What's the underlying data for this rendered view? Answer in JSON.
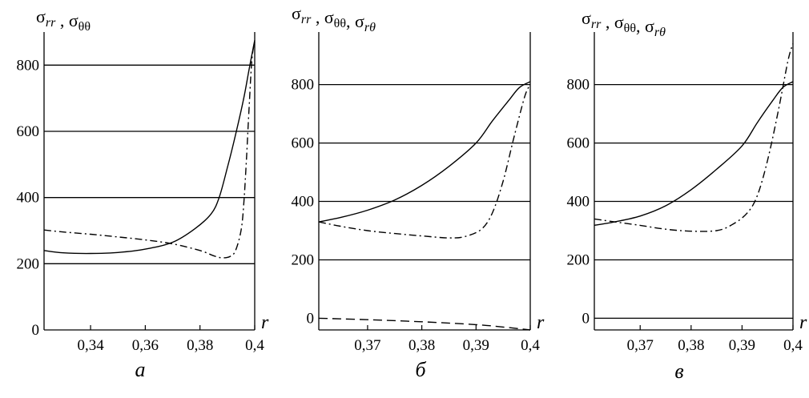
{
  "chart_data": [
    {
      "type": "line",
      "title": "",
      "ylabel": "σrr , σθθ",
      "xlabel": "r",
      "caption": "а",
      "xlim": [
        0.323,
        0.4
      ],
      "ylim": [
        0,
        900
      ],
      "gridlines_y": [
        200,
        400,
        600,
        800
      ],
      "xticks": [
        {
          "v": 0.34,
          "t": "0,34"
        },
        {
          "v": 0.36,
          "t": "0,36"
        },
        {
          "v": 0.38,
          "t": "0,38"
        },
        {
          "v": 0.4,
          "t": "0,4"
        }
      ],
      "yticks": [
        {
          "v": 0,
          "t": "0"
        },
        {
          "v": 200,
          "t": "200"
        },
        {
          "v": 400,
          "t": "400"
        },
        {
          "v": 600,
          "t": "600"
        },
        {
          "v": 800,
          "t": "800"
        }
      ],
      "series": [
        {
          "style": "solid",
          "x": [
            0.323,
            0.33,
            0.34,
            0.35,
            0.36,
            0.37,
            0.378,
            0.384,
            0.387,
            0.39,
            0.393,
            0.396,
            0.398,
            0.4
          ],
          "y": [
            240,
            233,
            231,
            234,
            244,
            265,
            305,
            350,
            400,
            490,
            590,
            700,
            790,
            875
          ]
        },
        {
          "style": "dashdot",
          "x": [
            0.323,
            0.33,
            0.34,
            0.35,
            0.36,
            0.37,
            0.38,
            0.385,
            0.388,
            0.391,
            0.393,
            0.395,
            0.396,
            0.397,
            0.398,
            0.399,
            0.4
          ],
          "y": [
            302,
            296,
            289,
            281,
            272,
            260,
            240,
            224,
            218,
            222,
            240,
            300,
            380,
            520,
            680,
            820,
            870
          ]
        }
      ]
    },
    {
      "type": "line",
      "title": "",
      "ylabel": "σrr , σθθ, σrθ",
      "xlabel": "r",
      "caption": "б",
      "xlim": [
        0.361,
        0.4
      ],
      "ylim": [
        -40,
        980
      ],
      "gridlines_y": [
        200,
        400,
        600,
        800
      ],
      "xticks": [
        {
          "v": 0.37,
          "t": "0,37"
        },
        {
          "v": 0.38,
          "t": "0,38"
        },
        {
          "v": 0.39,
          "t": "0,39"
        },
        {
          "v": 0.4,
          "t": "0,4"
        }
      ],
      "yticks": [
        {
          "v": 0,
          "t": "0"
        },
        {
          "v": 200,
          "t": "200"
        },
        {
          "v": 400,
          "t": "400"
        },
        {
          "v": 600,
          "t": "600"
        },
        {
          "v": 800,
          "t": "800"
        }
      ],
      "series": [
        {
          "style": "solid",
          "x": [
            0.361,
            0.365,
            0.37,
            0.375,
            0.38,
            0.385,
            0.39,
            0.393,
            0.396,
            0.398,
            0.4
          ],
          "y": [
            330,
            345,
            370,
            405,
            455,
            520,
            600,
            675,
            745,
            790,
            810
          ]
        },
        {
          "style": "dashdot",
          "x": [
            0.361,
            0.365,
            0.37,
            0.375,
            0.38,
            0.385,
            0.388,
            0.391,
            0.393,
            0.395,
            0.397,
            0.399,
            0.4
          ],
          "y": [
            330,
            315,
            300,
            290,
            282,
            275,
            280,
            305,
            360,
            470,
            620,
            760,
            800
          ]
        },
        {
          "style": "dashed",
          "x": [
            0.361,
            0.37,
            0.38,
            0.39,
            0.395,
            0.4
          ],
          "y": [
            0,
            -5,
            -12,
            -22,
            -30,
            -40
          ]
        }
      ]
    },
    {
      "type": "line",
      "title": "",
      "ylabel": "σrr , σθθ, σrθ",
      "xlabel": "r",
      "caption": "в",
      "xlim": [
        0.361,
        0.4
      ],
      "ylim": [
        -40,
        980
      ],
      "gridlines_y": [
        0,
        200,
        400,
        600,
        800
      ],
      "xticks": [
        {
          "v": 0.37,
          "t": "0,37"
        },
        {
          "v": 0.38,
          "t": "0,38"
        },
        {
          "v": 0.39,
          "t": "0,39"
        },
        {
          "v": 0.4,
          "t": "0,4"
        }
      ],
      "yticks": [
        {
          "v": 0,
          "t": "0"
        },
        {
          "v": 200,
          "t": "200"
        },
        {
          "v": 400,
          "t": "400"
        },
        {
          "v": 600,
          "t": "600"
        },
        {
          "v": 800,
          "t": "800"
        }
      ],
      "series": [
        {
          "style": "solid",
          "x": [
            0.361,
            0.365,
            0.37,
            0.375,
            0.38,
            0.385,
            0.39,
            0.393,
            0.396,
            0.398,
            0.4
          ],
          "y": [
            318,
            330,
            350,
            385,
            440,
            510,
            590,
            670,
            745,
            790,
            810
          ]
        },
        {
          "style": "dashdot",
          "x": [
            0.361,
            0.365,
            0.37,
            0.375,
            0.38,
            0.385,
            0.388,
            0.391,
            0.393,
            0.395,
            0.397,
            0.399,
            0.4
          ],
          "y": [
            340,
            330,
            318,
            305,
            298,
            300,
            320,
            360,
            420,
            540,
            700,
            880,
            940
          ]
        }
      ]
    }
  ]
}
